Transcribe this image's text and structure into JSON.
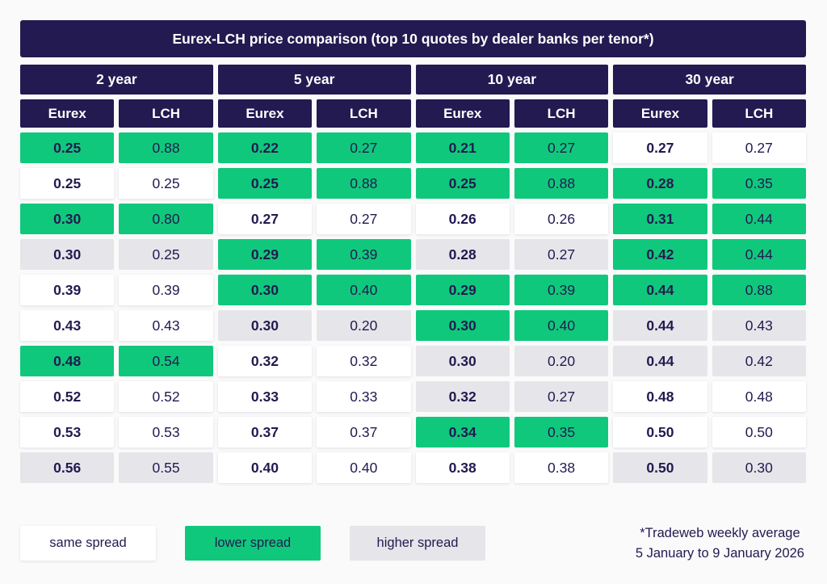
{
  "chart_data": {
    "type": "table",
    "title": "Eurex-LCH price comparison (top 10 quotes by dealer banks per tenor*)",
    "sub_headers": [
      "Eurex",
      "LCH"
    ],
    "groups": [
      {
        "tenor": "2 year",
        "rows": [
          {
            "eurex": "0.25",
            "lch": "0.88",
            "status": "lower"
          },
          {
            "eurex": "0.25",
            "lch": "0.25",
            "status": "same"
          },
          {
            "eurex": "0.30",
            "lch": "0.80",
            "status": "lower"
          },
          {
            "eurex": "0.30",
            "lch": "0.25",
            "status": "higher"
          },
          {
            "eurex": "0.39",
            "lch": "0.39",
            "status": "same"
          },
          {
            "eurex": "0.43",
            "lch": "0.43",
            "status": "same"
          },
          {
            "eurex": "0.48",
            "lch": "0.54",
            "status": "lower"
          },
          {
            "eurex": "0.52",
            "lch": "0.52",
            "status": "same"
          },
          {
            "eurex": "0.53",
            "lch": "0.53",
            "status": "same"
          },
          {
            "eurex": "0.56",
            "lch": "0.55",
            "status": "higher"
          }
        ]
      },
      {
        "tenor": "5 year",
        "rows": [
          {
            "eurex": "0.22",
            "lch": "0.27",
            "status": "lower"
          },
          {
            "eurex": "0.25",
            "lch": "0.88",
            "status": "lower"
          },
          {
            "eurex": "0.27",
            "lch": "0.27",
            "status": "same"
          },
          {
            "eurex": "0.29",
            "lch": "0.39",
            "status": "lower"
          },
          {
            "eurex": "0.30",
            "lch": "0.40",
            "status": "lower"
          },
          {
            "eurex": "0.30",
            "lch": "0.20",
            "status": "higher"
          },
          {
            "eurex": "0.32",
            "lch": "0.32",
            "status": "same"
          },
          {
            "eurex": "0.33",
            "lch": "0.33",
            "status": "same"
          },
          {
            "eurex": "0.37",
            "lch": "0.37",
            "status": "same"
          },
          {
            "eurex": "0.40",
            "lch": "0.40",
            "status": "same"
          }
        ]
      },
      {
        "tenor": "10 year",
        "rows": [
          {
            "eurex": "0.21",
            "lch": "0.27",
            "status": "lower"
          },
          {
            "eurex": "0.25",
            "lch": "0.88",
            "status": "lower"
          },
          {
            "eurex": "0.26",
            "lch": "0.26",
            "status": "same"
          },
          {
            "eurex": "0.28",
            "lch": "0.27",
            "status": "higher"
          },
          {
            "eurex": "0.29",
            "lch": "0.39",
            "status": "lower"
          },
          {
            "eurex": "0.30",
            "lch": "0.40",
            "status": "lower"
          },
          {
            "eurex": "0.30",
            "lch": "0.20",
            "status": "higher"
          },
          {
            "eurex": "0.32",
            "lch": "0.27",
            "status": "higher"
          },
          {
            "eurex": "0.34",
            "lch": "0.35",
            "status": "lower"
          },
          {
            "eurex": "0.38",
            "lch": "0.38",
            "status": "same"
          }
        ]
      },
      {
        "tenor": "30 year",
        "rows": [
          {
            "eurex": "0.27",
            "lch": "0.27",
            "status": "same"
          },
          {
            "eurex": "0.28",
            "lch": "0.35",
            "status": "lower"
          },
          {
            "eurex": "0.31",
            "lch": "0.44",
            "status": "lower"
          },
          {
            "eurex": "0.42",
            "lch": "0.44",
            "status": "lower"
          },
          {
            "eurex": "0.44",
            "lch": "0.88",
            "status": "lower"
          },
          {
            "eurex": "0.44",
            "lch": "0.43",
            "status": "higher"
          },
          {
            "eurex": "0.44",
            "lch": "0.42",
            "status": "higher"
          },
          {
            "eurex": "0.48",
            "lch": "0.48",
            "status": "same"
          },
          {
            "eurex": "0.50",
            "lch": "0.50",
            "status": "same"
          },
          {
            "eurex": "0.50",
            "lch": "0.30",
            "status": "higher"
          }
        ]
      }
    ],
    "footnote": [
      "*Tradeweb weekly average",
      "5 January to 9 January 2026"
    ]
  },
  "legend": [
    {
      "label": "same spread",
      "status": "same"
    },
    {
      "label": "lower spread",
      "status": "lower"
    },
    {
      "label": "higher spread",
      "status": "higher"
    }
  ],
  "colors": {
    "navy": "#221a50",
    "green": "#10c87c",
    "gray": "#e6e5e9",
    "white": "#ffffff",
    "page_background": "#fafafa"
  }
}
